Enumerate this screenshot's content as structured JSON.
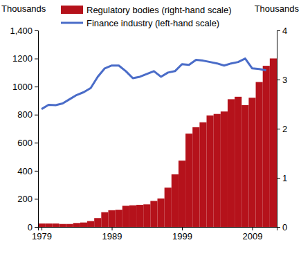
{
  "chart_data": {
    "type": "bar",
    "y_label": "Thousands",
    "y2_label": "Thousands",
    "x": [
      1979,
      1980,
      1981,
      1982,
      1983,
      1984,
      1985,
      1986,
      1987,
      1988,
      1989,
      1990,
      1991,
      1992,
      1993,
      1994,
      1995,
      1996,
      1997,
      1998,
      1999,
      2000,
      2001,
      2002,
      2003,
      2004,
      2005,
      2006,
      2007,
      2008,
      2009,
      2010,
      2011,
      2012
    ],
    "series": [
      {
        "name": "Regulatory bodies (right-hand scale)",
        "type": "bar",
        "axis": "y2",
        "color": "#b5121b",
        "values": [
          0.07,
          0.07,
          0.07,
          0.06,
          0.06,
          0.08,
          0.09,
          0.12,
          0.18,
          0.3,
          0.34,
          0.35,
          0.43,
          0.44,
          0.45,
          0.46,
          0.53,
          0.58,
          0.8,
          1.07,
          1.35,
          1.9,
          2.03,
          2.13,
          2.27,
          2.3,
          2.35,
          2.6,
          2.65,
          2.48,
          2.63,
          2.95,
          3.28,
          3.43
        ]
      },
      {
        "name": "Finance industry (left-hand scale)",
        "type": "line",
        "color": "#4a6cc8",
        "values": [
          840,
          870,
          868,
          880,
          910,
          940,
          960,
          990,
          1070,
          1130,
          1150,
          1150,
          1110,
          1060,
          1070,
          1090,
          1110,
          1070,
          1100,
          1110,
          1160,
          1155,
          1190,
          1185,
          1175,
          1165,
          1150,
          1165,
          1175,
          1200,
          1130,
          1125,
          1115,
          null
        ]
      }
    ],
    "xlim": [
      1978.5,
      2012.5
    ],
    "xticks": [
      1979,
      1989,
      1999,
      2009
    ],
    "ylim": [
      0,
      1400
    ],
    "yticks": [
      0,
      200,
      400,
      600,
      800,
      1000,
      1200,
      {
        "value": 1400,
        "label": "1,400"
      }
    ],
    "y2lim": [
      0,
      4
    ],
    "y2ticks": [
      0,
      1,
      2,
      3,
      4
    ],
    "grid": false,
    "legend": "top-left"
  }
}
